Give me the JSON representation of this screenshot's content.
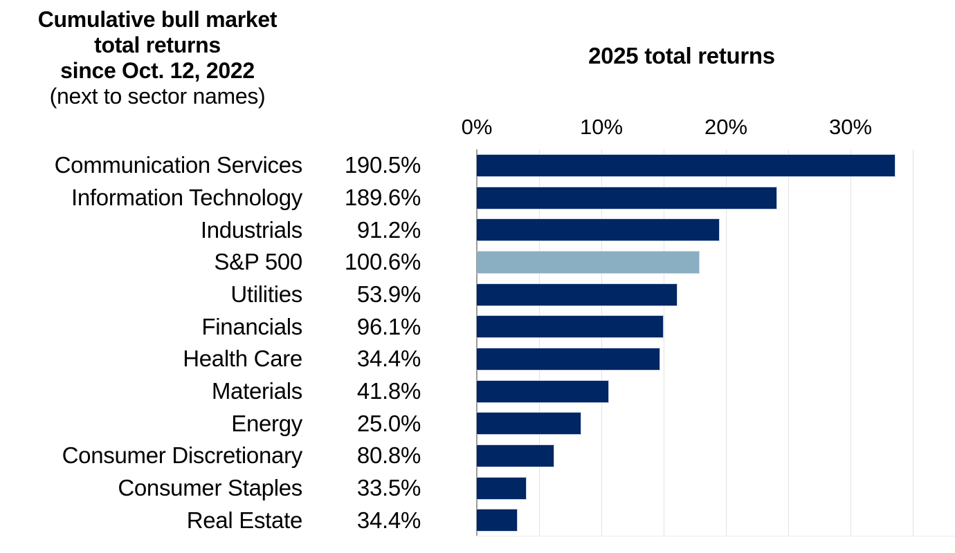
{
  "header": {
    "line1": "Cumulative bull market",
    "line2": "total returns",
    "line3": "since Oct. 12, 2022",
    "line4": "(next to sector names)"
  },
  "chart": {
    "title": "2025 total returns",
    "x_ticks": [
      "0%",
      "10%",
      "20%",
      "30%"
    ],
    "axis_max_pct": 38.4,
    "gridline_step_pct": 5,
    "colors": {
      "bar": "#002664",
      "highlight_bar": "#8AAFC3",
      "bar_border": "#c9d3e6",
      "gridline": "#e2e2e2",
      "axis_line": "#9b9b9b",
      "text": "#000000"
    }
  },
  "sectors": [
    {
      "name": "Communication Services",
      "cumulative": "190.5%",
      "value_2025_pct": 33.6,
      "highlight": false
    },
    {
      "name": "Information Technology",
      "cumulative": "189.6%",
      "value_2025_pct": 24.1,
      "highlight": false
    },
    {
      "name": "Industrials",
      "cumulative": "91.2%",
      "value_2025_pct": 19.5,
      "highlight": false
    },
    {
      "name": "S&P 500",
      "cumulative": "100.6%",
      "value_2025_pct": 17.9,
      "highlight": true
    },
    {
      "name": "Utilities",
      "cumulative": "53.9%",
      "value_2025_pct": 16.1,
      "highlight": false
    },
    {
      "name": "Financials",
      "cumulative": "96.1%",
      "value_2025_pct": 15.0,
      "highlight": false
    },
    {
      "name": "Health Care",
      "cumulative": "34.4%",
      "value_2025_pct": 14.7,
      "highlight": false
    },
    {
      "name": "Materials",
      "cumulative": "41.8%",
      "value_2025_pct": 10.6,
      "highlight": false
    },
    {
      "name": "Energy",
      "cumulative": "25.0%",
      "value_2025_pct": 8.4,
      "highlight": false
    },
    {
      "name": "Consumer Discretionary",
      "cumulative": "80.8%",
      "value_2025_pct": 6.2,
      "highlight": false
    },
    {
      "name": "Consumer Staples",
      "cumulative": "33.5%",
      "value_2025_pct": 4.0,
      "highlight": false
    },
    {
      "name": "Real Estate",
      "cumulative": "34.4%",
      "value_2025_pct": 3.3,
      "highlight": false
    }
  ],
  "chart_data": {
    "type": "bar",
    "orientation": "horizontal",
    "title": "2025 total returns",
    "subtitle_left": "Cumulative bull market total returns since Oct. 12, 2022 (next to sector names)",
    "categories": [
      "Communication Services",
      "Information Technology",
      "Industrials",
      "S&P 500",
      "Utilities",
      "Financials",
      "Health Care",
      "Materials",
      "Energy",
      "Consumer Discretionary",
      "Consumer Staples",
      "Real Estate"
    ],
    "series": [
      {
        "name": "2025 total returns (%)",
        "values": [
          33.6,
          24.1,
          19.5,
          17.9,
          16.1,
          15.0,
          14.7,
          10.6,
          8.4,
          6.2,
          4.0,
          3.3
        ]
      },
      {
        "name": "Cumulative bull market total returns since Oct. 12, 2022 (%)",
        "values": [
          190.5,
          189.6,
          91.2,
          100.6,
          53.9,
          96.1,
          34.4,
          41.8,
          25.0,
          80.8,
          33.5,
          34.4
        ]
      }
    ],
    "xlim": [
      0,
      38.4
    ],
    "x_tick_values_pct": [
      0,
      10,
      20,
      30
    ],
    "gridlines_every_pct": 5,
    "grid": true,
    "legend_position": "none",
    "highlighted_category": "S&P 500",
    "bar_color": "#002664",
    "highlight_color": "#8AAFC3"
  }
}
